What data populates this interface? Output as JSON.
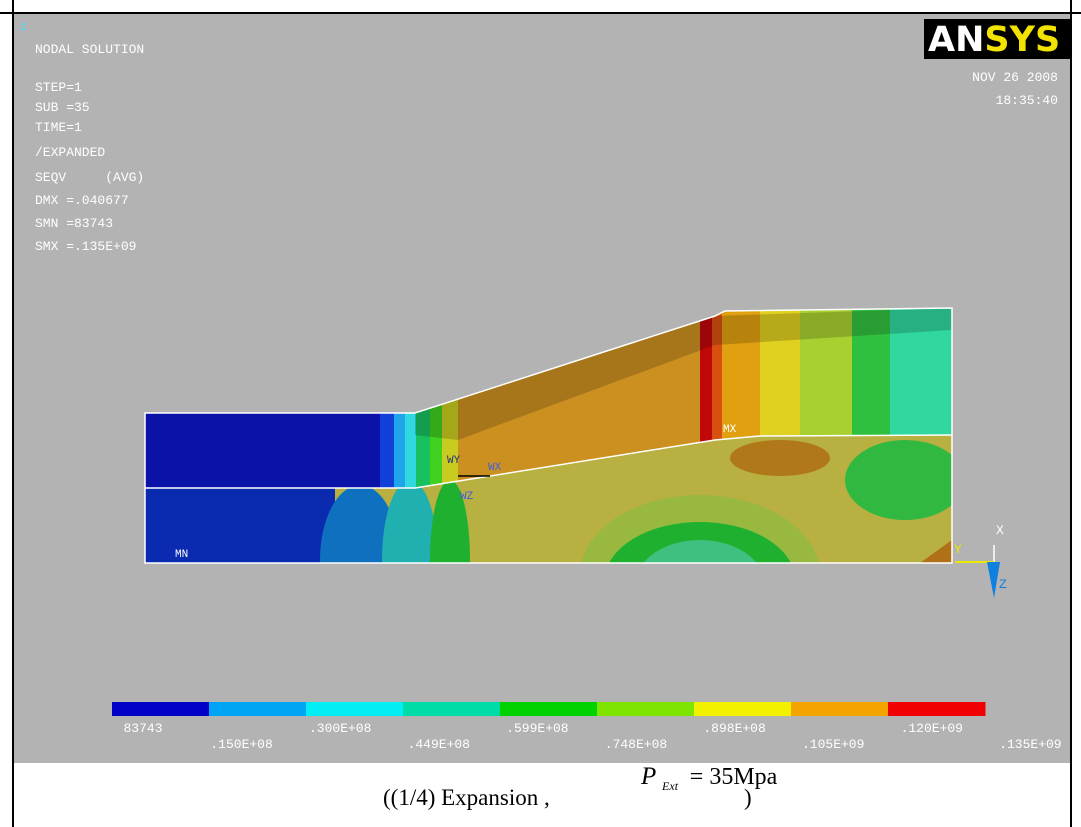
{
  "window_number": "1",
  "header": {
    "title": "NODAL SOLUTION",
    "lines": [
      "STEP=1",
      "SUB =35",
      "TIME=1",
      "/EXPANDED",
      "SEQV     (AVG)",
      "DMX =.040677",
      "SMN =83743",
      "SMX =.135E+09"
    ]
  },
  "logo": {
    "left": "AN",
    "right": "SYS"
  },
  "date": "NOV 26 2008",
  "time": "18:35:40",
  "labels": {
    "min": "MN",
    "max": "MX",
    "wy": "WY",
    "wx": "WX",
    "wz": "WZ",
    "axis_x": "X",
    "axis_y": "Y",
    "axis_z": "Z"
  },
  "legend": {
    "colors": [
      "#0000c8",
      "#00a4f4",
      "#00eef4",
      "#00dca8",
      "#00d200",
      "#7ee400",
      "#f2f200",
      "#f4a400",
      "#f00000"
    ],
    "labels": [
      "83743",
      ".150E+08",
      ".300E+08",
      ".449E+08",
      ".599E+08",
      ".748E+08",
      ".898E+08",
      ".105E+09",
      ".120E+09",
      ".135E+09"
    ]
  },
  "caption": {
    "prefix": "((1/4)  Expansion ,",
    "symbol": "P",
    "subscript": "Ext",
    "formula": "= 35Mpa",
    "suffix": ")"
  }
}
